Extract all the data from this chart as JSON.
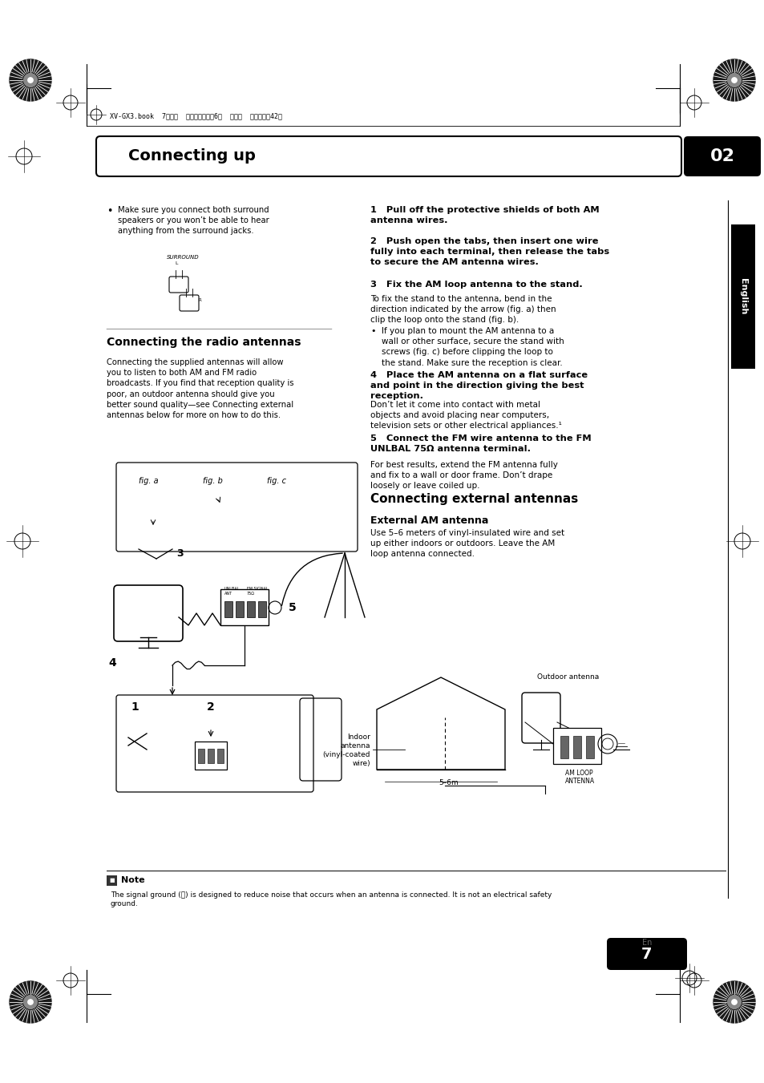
{
  "bg_color": "#ffffff",
  "page_width": 9.54,
  "page_height": 13.51,
  "title_text": "Connecting up",
  "title_number": "02",
  "section1_heading": "Connecting the radio antennas",
  "section1_body": "Connecting the supplied antennas will allow\nyou to listen to both AM and FM radio\nbroadcasts. If you find that reception quality is\npoor, an outdoor antenna should give you\nbetter sound quality—see Connecting external\nantennas below for more on how to do this.",
  "bullet_text": "Make sure you connect both surround\nspeakers or you won’t be able to hear\nanything from the surround jacks.",
  "step1": "1   Pull off the protective shields of both AM\nantenna wires.",
  "step2": "2   Push open the tabs, then insert one wire\nfully into each terminal, then release the tabs\nto secure the AM antenna wires.",
  "step3h": "3   Fix the AM loop antenna to the stand.",
  "step3b": "To fix the stand to the antenna, bend in the\ndirection indicated by the arrow (fig. a) then\nclip the loop onto the stand (fig. b).",
  "step3bul": "If you plan to mount the AM antenna to a\nwall or other surface, secure the stand with\nscrews (fig. c) before clipping the loop to\nthe stand. Make sure the reception is clear.",
  "step4h": "4   Place the AM antenna on a flat surface\nand point in the direction giving the best\nreception.",
  "step4b": "Don’t let it come into contact with metal\nobjects and avoid placing near computers,\ntelevision sets or other electrical appliances.¹",
  "step5h": "5   Connect the FM wire antenna to the FM\nUNLBAL 75Ω antenna terminal.",
  "step5b": "For best results, extend the FM antenna fully\nand fix to a wall or door frame. Don’t drape\nloosely or leave coiled up.",
  "section2_heading": "Connecting external antennas",
  "ext_am_heading": "External AM antenna",
  "ext_am_body": "Use 5–6 meters of vinyl-insulated wire and set\nup either indoors or outdoors. Leave the AM\nloop antenna connected.",
  "note_head": "Note",
  "note_body": "The signal ground (⪥) is designed to reduce noise that occurs when an antenna is connected. It is not an electrical safety\nground.",
  "page_number": "7",
  "page_number_sub": "En",
  "english_sidebar": "English",
  "fig_labels": [
    "fig. a",
    "fig. b",
    "fig. c"
  ],
  "outdoor_label": "Outdoor antenna",
  "indoor_label": "Indoor\nantenna\n(vinyl-coated\nwire)",
  "distance_label": "5–6m",
  "am_loop_label": "AM LOOP\nANTENNA",
  "surround_label": "SURROUND",
  "header_text": "XV-GX3.book  7ページ  ２００５年７月6日  水曜日  午前１１時42分"
}
